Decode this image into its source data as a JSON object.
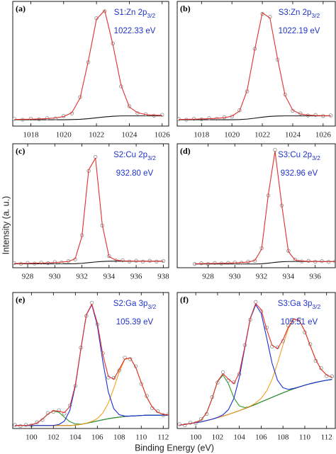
{
  "figure": {
    "xlabel": "Binding Energy (eV)",
    "ylabel": "Intensity (a. u.)"
  },
  "chart_data": [
    {
      "type": "line",
      "label": "(a)",
      "annotation_name": "S1:Zn 2p",
      "annotation_sub": "3/2",
      "annotation_energy": "1022.33 eV",
      "xlim": [
        1016.9,
        1026.4
      ],
      "xticks": [
        1018,
        1020,
        1022,
        1024,
        1026
      ],
      "ylim": [
        0,
        98
      ],
      "x": [
        1017,
        1017.5,
        1018,
        1018.5,
        1019,
        1019.5,
        1020,
        1020.5,
        1021,
        1021.5,
        1022,
        1022.5,
        1023,
        1023.5,
        1024,
        1024.5,
        1025,
        1025.5,
        1026
      ],
      "series": [
        {
          "style": "line",
          "color": "#111111",
          "values": [
            5,
            5,
            5,
            5,
            5,
            5,
            5,
            5.1,
            5.3,
            5.8,
            6.5,
            7.2,
            7.7,
            8,
            8,
            8,
            8,
            8,
            8
          ]
        },
        {
          "style": "markers",
          "color": "#8a8a8a",
          "values": [
            5.6,
            5.0,
            5.8,
            5.3,
            6.2,
            6.0,
            7.9,
            10.0,
            22.8,
            50.2,
            84.8,
            90.3,
            64.9,
            31.2,
            15.6,
            10.1,
            9.3,
            8.2,
            8.8
          ]
        },
        {
          "style": "line",
          "color": "#e0312f",
          "values": [
            5.2,
            5.3,
            5.4,
            5.6,
            5.9,
            6.4,
            7.5,
            10.5,
            22,
            51,
            84,
            91,
            64,
            32,
            15,
            10.5,
            9,
            8.6,
            8.4
          ]
        }
      ]
    },
    {
      "type": "line",
      "label": "(b)",
      "annotation_name": "S3:Zn 2p",
      "annotation_sub": "3/2",
      "annotation_energy": "1022.19 eV",
      "xlim": [
        1016.4,
        1026.8
      ],
      "xticks": [
        1018,
        1020,
        1022,
        1024,
        1026
      ],
      "ylim": [
        0,
        98
      ],
      "x": [
        1016.5,
        1017,
        1017.5,
        1018,
        1018.5,
        1019,
        1019.5,
        1020,
        1020.5,
        1021,
        1021.5,
        1022,
        1022.5,
        1023,
        1023.5,
        1024,
        1024.5,
        1025,
        1025.5,
        1026,
        1026.5
      ],
      "series": [
        {
          "style": "line",
          "color": "#111111",
          "values": [
            5,
            5,
            5,
            5,
            5,
            5,
            5,
            5,
            5.1,
            5.5,
            6.2,
            7,
            7.6,
            7.9,
            8,
            8,
            8,
            8,
            8,
            8,
            8
          ]
        },
        {
          "style": "markers",
          "color": "#8a8a8a",
          "values": [
            5.5,
            5.0,
            5.7,
            5.3,
            6.2,
            5.8,
            6.9,
            7.5,
            12.4,
            27.3,
            60.8,
            88.2,
            85.9,
            52.3,
            24.8,
            12.0,
            9.9,
            8.3,
            8.7,
            7.9,
            8.4
          ]
        },
        {
          "style": "line",
          "color": "#e0312f",
          "values": [
            5.2,
            5.3,
            5.4,
            5.6,
            5.8,
            6.1,
            6.6,
            7.8,
            11.8,
            28,
            60,
            89,
            85,
            53,
            24,
            12.5,
            9.5,
            8.6,
            8.3,
            8.2,
            8.1
          ]
        }
      ]
    },
    {
      "type": "line",
      "label": "(c)",
      "annotation_name": "S2:Cu 2p",
      "annotation_sub": "3/2",
      "annotation_energy": "932.80 eV",
      "xlim": [
        926.9,
        938.4
      ],
      "xticks": [
        928,
        930,
        932,
        934,
        936,
        938
      ],
      "ylim": [
        0,
        95
      ],
      "x": [
        927,
        927.5,
        928,
        928.5,
        929,
        929.5,
        930,
        930.5,
        931,
        931.5,
        932,
        932.5,
        933,
        933.5,
        934,
        934.5,
        935,
        935.5,
        936,
        936.5,
        937,
        937.5,
        938
      ],
      "series": [
        {
          "style": "line",
          "color": "#111111",
          "values": [
            3,
            3,
            3,
            3,
            3,
            3,
            3,
            3,
            3,
            3.1,
            3.4,
            3.9,
            4.4,
            4.8,
            5,
            5,
            5,
            5,
            5,
            5,
            5,
            5,
            5
          ]
        },
        {
          "style": "markers",
          "color": "#8a8a8a",
          "values": [
            3.5,
            3.0,
            3.7,
            3.2,
            3.9,
            3.5,
            4.3,
            4.0,
            5.1,
            6.4,
            24.9,
            74.2,
            84.9,
            32.4,
            9.0,
            5.5,
            5.7,
            4.8,
            5.3,
            4.7,
            5.3,
            4.8,
            5.2
          ]
        },
        {
          "style": "line",
          "color": "#e0312f",
          "values": [
            3.2,
            3.3,
            3.4,
            3.5,
            3.6,
            3.8,
            4,
            4.3,
            4.8,
            6.8,
            24,
            75,
            84,
            33,
            8.5,
            5.8,
            5.3,
            5.1,
            5,
            5,
            5,
            5,
            5
          ]
        }
      ]
    },
    {
      "type": "line",
      "label": "(d)",
      "annotation_name": "S3:Cu 2p",
      "annotation_sub": "3/2",
      "annotation_energy": "932.96 eV",
      "xlim": [
        925.7,
        937.5
      ],
      "xticks": [
        928,
        930,
        932,
        934,
        936
      ],
      "ylim": [
        0,
        100
      ],
      "x": [
        927,
        927.5,
        928,
        928.5,
        929,
        929.5,
        930,
        930.5,
        931,
        931.5,
        932,
        932.5,
        933,
        933.5,
        934,
        934.5,
        935,
        935.5,
        936,
        936.5,
        937,
        937.5
      ],
      "series": [
        {
          "style": "line",
          "color": "#111111",
          "values": [
            3,
            3,
            3,
            3,
            3,
            3,
            3,
            3,
            3,
            3,
            3.2,
            3.7,
            4.3,
            4.8,
            5,
            5,
            5,
            5,
            5,
            5,
            5,
            5
          ]
        },
        {
          "style": "markers",
          "color": "#8a8a8a",
          "values": [
            3.0,
            3.6,
            3.1,
            3.8,
            3.4,
            3.9,
            4.2,
            4.0,
            4.9,
            5.6,
            15.8,
            58.3,
            95.1,
            50.2,
            13.6,
            6.5,
            5.1,
            5.5,
            4.8,
            5.3,
            4.7,
            5.2
          ]
        },
        {
          "style": "line",
          "color": "#e0312f",
          "values": [
            3.2,
            3.3,
            3.4,
            3.5,
            3.6,
            3.7,
            3.9,
            4.2,
            4.6,
            5.9,
            15,
            59,
            94,
            51,
            13,
            6.2,
            5.4,
            5.2,
            5.1,
            5,
            5,
            5
          ]
        }
      ]
    },
    {
      "type": "line",
      "label": "(e)",
      "annotation_name": "S2:Ga 3p",
      "annotation_sub": "3/2",
      "annotation_energy": "105.39 eV",
      "xlim": [
        98.3,
        112.5
      ],
      "xticks": [
        100,
        102,
        104,
        106,
        108,
        110,
        112
      ],
      "ylim": [
        0,
        92
      ],
      "x": [
        98.5,
        99,
        99.5,
        100,
        100.5,
        101,
        101.5,
        102,
        102.5,
        103,
        103.5,
        104,
        104.5,
        105,
        105.5,
        106,
        106.5,
        107,
        107.5,
        108,
        108.5,
        109,
        109.5,
        110,
        110.5,
        111,
        111.5,
        112,
        112.5
      ],
      "series": [
        {
          "style": "line",
          "color": "#111111",
          "values": [
            2,
            2,
            2,
            2,
            2,
            2,
            2,
            2,
            2,
            2,
            2,
            2.3,
            2.8,
            3.5,
            4.3,
            5.1,
            5.9,
            6.6,
            7.2,
            7.7,
            8.1,
            8.4,
            8.6,
            8.8,
            9,
            9,
            9,
            9,
            9
          ]
        },
        {
          "style": "line",
          "color": "#2e9a2e",
          "values": [
            2,
            2,
            2.1,
            2.5,
            3.7,
            6.3,
            9.8,
            11.9,
            11.0,
            7.7,
            4.6,
            3.1,
            3.0,
            3.5,
            4.3,
            5.1,
            5.9,
            6.6,
            7.2,
            7.7,
            8.1,
            8.4,
            8.6,
            8.8,
            9,
            9,
            9,
            9,
            9
          ]
        },
        {
          "style": "line",
          "color": "#f0a020",
          "values": [
            2,
            2,
            2,
            2,
            2,
            2,
            2,
            2,
            2,
            2,
            2,
            2.3,
            2.8,
            3.6,
            4.8,
            6.7,
            10.5,
            17.2,
            27.2,
            38.5,
            46.7,
            47.8,
            41.3,
            31.0,
            21.2,
            14.5,
            11.0,
            9.6,
            9.2
          ]
        },
        {
          "style": "line",
          "color": "#1a2fd6",
          "values": [
            2,
            2,
            2,
            2,
            2,
            2,
            2,
            2.1,
            2.7,
            5.0,
            12.3,
            28.8,
            53.6,
            76.9,
            83.7,
            69.7,
            45.4,
            24.7,
            13.4,
            9.3,
            8.4,
            8.4,
            8.6,
            8.8,
            9,
            9,
            9,
            9,
            9
          ]
        },
        {
          "style": "markers",
          "color": "#8a8a8a",
          "values": [
            2.4,
            1.7,
            2.5,
            2.2,
            4.2,
            5.8,
            10.5,
            11.4,
            12.3,
            10.1,
            15.6,
            28.8,
            54.7,
            76.2,
            85.1,
            70.4,
            50.9,
            34.5,
            34.2,
            39.3,
            47.9,
            46.9,
            42.1,
            30.2,
            22.0,
            13.8,
            11.7,
            9.0,
            9.8
          ]
        },
        {
          "style": "line",
          "color": "#e0312f",
          "values": [
            2,
            2,
            2.1,
            2.5,
            3.7,
            6.3,
            9.8,
            12.0,
            11.7,
            10.7,
            14.9,
            29.6,
            53.8,
            77.0,
            84.2,
            71.3,
            50.0,
            35.3,
            33.4,
            40.1,
            47.0,
            47.8,
            41.3,
            31.0,
            21.2,
            14.5,
            11.0,
            9.6,
            9.2
          ]
        }
      ]
    },
    {
      "type": "line",
      "label": "(f)",
      "annotation_name": "S3:Ga 3p",
      "annotation_sub": "3/2",
      "annotation_energy": "105.51 eV",
      "xlim": [
        98.3,
        112.8
      ],
      "xticks": [
        100,
        102,
        104,
        106,
        108,
        110,
        112
      ],
      "ylim": [
        0,
        82
      ],
      "x": [
        98.5,
        99,
        99.5,
        100,
        100.5,
        101,
        101.5,
        102,
        102.5,
        103,
        103.5,
        104,
        104.5,
        105,
        105.5,
        106,
        106.5,
        107,
        107.5,
        108,
        108.5,
        109,
        109.5,
        110,
        110.5,
        111,
        111.5,
        112,
        112.5
      ],
      "series": [
        {
          "style": "line",
          "color": "#111111",
          "values": [
            2,
            2.5,
            3,
            3.5,
            4,
            4.8,
            5.6,
            6.5,
            7.5,
            8.5,
            9.6,
            10.8,
            12,
            13.3,
            14.6,
            16,
            17.4,
            18.8,
            20.2,
            21.5,
            22.8,
            24,
            25.1,
            26.1,
            27,
            27.8,
            28.5,
            29.1,
            29.6
          ]
        },
        {
          "style": "line",
          "color": "#2e9a2e",
          "values": [
            2,
            2.5,
            3,
            3.7,
            5.1,
            9.5,
            18.1,
            28.3,
            32.3,
            26.9,
            18.5,
            13.6,
            12.6,
            13.4,
            14.6,
            16,
            17.4,
            18.8,
            20.2,
            21.5,
            22.8,
            24,
            25.1,
            26.1,
            27,
            27.8,
            28.5,
            29.1,
            29.6
          ]
        },
        {
          "style": "line",
          "color": "#f0a020",
          "values": [
            2,
            2.5,
            3,
            3.5,
            4,
            4.8,
            5.6,
            6.5,
            7.5,
            8.5,
            9.6,
            10.8,
            12.1,
            13.5,
            15.4,
            18.2,
            22.6,
            29.6,
            39.3,
            50.4,
            60.4,
            65.9,
            65.1,
            58.8,
            50,
            41.6,
            35.6,
            32.3,
            30.8
          ]
        },
        {
          "style": "line",
          "color": "#1a2fd6",
          "values": [
            2,
            2.5,
            3,
            3.5,
            4,
            4.8,
            5.6,
            6.7,
            8.3,
            11.4,
            18.2,
            30.8,
            48.7,
            66.2,
            74.6,
            69.5,
            54.8,
            39.4,
            29.1,
            24.6,
            23.6,
            24.2,
            25.1,
            26.1,
            27,
            27.8,
            28.5,
            29.1,
            29.6
          ]
        },
        {
          "style": "markers",
          "color": "#8a8a8a",
          "values": [
            2.6,
            2.0,
            3.5,
            3.2,
            5.8,
            8.8,
            18.9,
            27.7,
            34.0,
            29.0,
            27.9,
            32.8,
            50.3,
            65.6,
            76.3,
            70.8,
            60.9,
            49.4,
            49.0,
            52.7,
            62.0,
            65.3,
            66.0,
            58.0,
            50.9,
            40.8,
            36.4,
            31.6,
            31.5
          ]
        },
        {
          "style": "line",
          "color": "#e0312f",
          "values": [
            2,
            2.5,
            3,
            3.7,
            5.1,
            9.5,
            18.1,
            28.5,
            33.1,
            29.8,
            27.1,
            33.6,
            49.4,
            66.5,
            75.4,
            71.7,
            60.0,
            50.2,
            48.2,
            53.5,
            61.2,
            66.1,
            65.1,
            58.8,
            50,
            41.6,
            35.6,
            32.3,
            30.8
          ]
        }
      ]
    }
  ]
}
